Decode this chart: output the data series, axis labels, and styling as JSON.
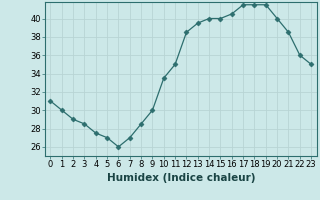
{
  "x": [
    0,
    1,
    2,
    3,
    4,
    5,
    6,
    7,
    8,
    9,
    10,
    11,
    12,
    13,
    14,
    15,
    16,
    17,
    18,
    19,
    20,
    21,
    22,
    23
  ],
  "y": [
    31,
    30,
    29,
    28.5,
    27.5,
    27,
    26,
    27,
    28.5,
    30,
    33.5,
    35,
    38.5,
    39.5,
    40,
    40,
    40.5,
    41.5,
    41.5,
    41.5,
    40,
    38.5,
    36,
    35
  ],
  "ylim": [
    25.0,
    41.8
  ],
  "yticks": [
    26,
    28,
    30,
    32,
    34,
    36,
    38,
    40
  ],
  "xticks": [
    0,
    1,
    2,
    3,
    4,
    5,
    6,
    7,
    8,
    9,
    10,
    11,
    12,
    13,
    14,
    15,
    16,
    17,
    18,
    19,
    20,
    21,
    22,
    23
  ],
  "xlabel": "Humidex (Indice chaleur)",
  "line_color": "#2d6e6e",
  "marker": "D",
  "marker_size": 2.5,
  "bg_color": "#cce8e8",
  "grid_color": "#b8d4d4",
  "tick_fontsize": 6,
  "label_fontsize": 7.5
}
